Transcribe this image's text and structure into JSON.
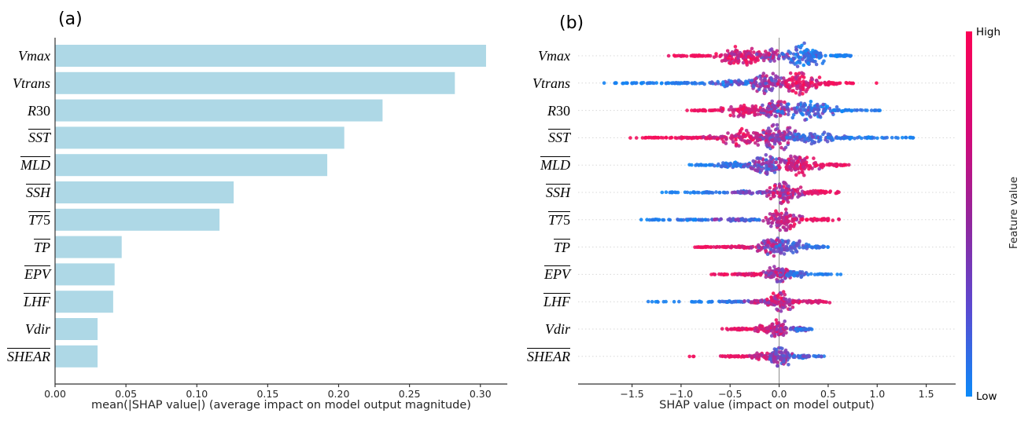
{
  "figure": {
    "background": "#ffffff"
  },
  "chart_data": [
    {
      "type": "bar",
      "orientation": "horizontal",
      "tag": "(a)",
      "title": "",
      "xlabel": "mean(|SHAP value|) (average impact on model output magnitude)",
      "ylabel": "",
      "categories": [
        "Vmax",
        "Vtrans",
        "R30",
        "SST",
        "MLD",
        "SSH",
        "T75",
        "TP",
        "EPV",
        "LHF",
        "Vdir",
        "SHEAR"
      ],
      "overline": [
        false,
        false,
        false,
        true,
        true,
        true,
        true,
        true,
        true,
        true,
        false,
        true
      ],
      "values": [
        0.304,
        0.282,
        0.231,
        0.204,
        0.192,
        0.126,
        0.116,
        0.047,
        0.042,
        0.041,
        0.03,
        0.03
      ],
      "xticks": {
        "values": [
          0,
          0.05,
          0.1,
          0.15,
          0.2,
          0.25,
          0.3
        ],
        "labels": [
          "0.00",
          "0.05",
          "0.10",
          "0.15",
          "0.20",
          "0.25",
          "0.30"
        ]
      },
      "xlim": [
        0,
        0.319
      ],
      "bar_color": "#aed8e6",
      "grid": false
    },
    {
      "type": "scatter",
      "variant": "beeswarm",
      "tag": "(b)",
      "title": "",
      "xlabel": "SHAP value (impact on model output)",
      "xticks": {
        "values": [
          -1.5,
          -1.0,
          -0.5,
          0.0,
          0.5,
          1.0,
          1.5
        ],
        "labels": [
          "−1.5",
          "−1.0",
          "−0.5",
          "0.0",
          "0.5",
          "1.0",
          "1.5"
        ]
      },
      "xlim": [
        -2.05,
        1.8
      ],
      "zero_line": true,
      "grid": "dotted-horizontal",
      "colors": {
        "high": "#fb0d57",
        "mid": "#8a3bb4",
        "low": "#0b8af8"
      },
      "colorbar": {
        "title": "Feature value",
        "high_label": "High",
        "low_label": "Low"
      },
      "rows": [
        {
          "feature": "Vmax",
          "overline": false,
          "shap_range": [
            -1.2,
            0.85
          ],
          "clusters": [
            {
              "x": -0.85,
              "sx": 0.18,
              "sy": 0.05,
              "n": 45,
              "v": 0.95,
              "vj": 0.05
            },
            {
              "x": -0.38,
              "sx": 0.17,
              "sy": 0.75,
              "n": 110,
              "v": 0.82,
              "vj": 0.25
            },
            {
              "x": -0.07,
              "sx": 0.1,
              "sy": 0.5,
              "n": 50,
              "v": 0.55,
              "vj": 0.3
            },
            {
              "x": 0.27,
              "sx": 0.14,
              "sy": 0.95,
              "n": 110,
              "v": 0.18,
              "vj": 0.2
            },
            {
              "x": 0.62,
              "sx": 0.12,
              "sy": 0.07,
              "n": 35,
              "v": 0.08,
              "vj": 0.08
            }
          ]
        },
        {
          "feature": "Vtrans",
          "overline": false,
          "shap_range": [
            -1.8,
            1.0
          ],
          "clusters": [
            {
              "x": -1.45,
              "sx": 0.18,
              "sy": 0.04,
              "n": 30,
              "v": 0.06,
              "vj": 0.06
            },
            {
              "x": -0.95,
              "sx": 0.22,
              "sy": 0.05,
              "n": 45,
              "v": 0.08,
              "vj": 0.08
            },
            {
              "x": -0.45,
              "sx": 0.18,
              "sy": 0.3,
              "n": 60,
              "v": 0.25,
              "vj": 0.25
            },
            {
              "x": -0.12,
              "sx": 0.12,
              "sy": 0.8,
              "n": 90,
              "v": 0.5,
              "vj": 0.3
            },
            {
              "x": 0.22,
              "sx": 0.13,
              "sy": 0.95,
              "n": 100,
              "v": 0.85,
              "vj": 0.2
            },
            {
              "x": 0.5,
              "sx": 0.08,
              "sy": 0.15,
              "n": 30,
              "v": 0.95,
              "vj": 0.05
            },
            {
              "x": 0.72,
              "sx": 0.1,
              "sy": 0.04,
              "n": 8,
              "v": 0.97,
              "vj": 0.03
            },
            {
              "x": 1.0,
              "sx": 0.01,
              "sy": 0.02,
              "n": 1,
              "v": 1.0,
              "vj": 0.0
            }
          ]
        },
        {
          "feature": "R30",
          "overline": false,
          "shap_range": [
            -0.95,
            1.15
          ],
          "clusters": [
            {
              "x": -0.72,
              "sx": 0.13,
              "sy": 0.05,
              "n": 30,
              "v": 0.95,
              "vj": 0.05
            },
            {
              "x": -0.35,
              "sx": 0.16,
              "sy": 0.5,
              "n": 80,
              "v": 0.85,
              "vj": 0.2
            },
            {
              "x": -0.05,
              "sx": 0.12,
              "sy": 0.8,
              "n": 80,
              "v": 0.6,
              "vj": 0.3
            },
            {
              "x": 0.28,
              "sx": 0.18,
              "sy": 0.85,
              "n": 100,
              "v": 0.25,
              "vj": 0.25
            },
            {
              "x": 0.65,
              "sx": 0.15,
              "sy": 0.08,
              "n": 30,
              "v": 0.1,
              "vj": 0.1
            },
            {
              "x": 1.0,
              "sx": 0.08,
              "sy": 0.03,
              "n": 8,
              "v": 0.08,
              "vj": 0.08
            }
          ]
        },
        {
          "feature": "SST",
          "overline": true,
          "shap_range": [
            -1.55,
            1.55
          ],
          "clusters": [
            {
              "x": -1.3,
              "sx": 0.15,
              "sy": 0.04,
              "n": 25,
              "v": 0.97,
              "vj": 0.03
            },
            {
              "x": -0.85,
              "sx": 0.2,
              "sy": 0.08,
              "n": 50,
              "v": 0.93,
              "vj": 0.07
            },
            {
              "x": -0.35,
              "sx": 0.22,
              "sy": 0.7,
              "n": 100,
              "v": 0.85,
              "vj": 0.2
            },
            {
              "x": -0.02,
              "sx": 0.15,
              "sy": 1.0,
              "n": 110,
              "v": 0.55,
              "vj": 0.3
            },
            {
              "x": 0.35,
              "sx": 0.2,
              "sy": 0.45,
              "n": 80,
              "v": 0.25,
              "vj": 0.2
            },
            {
              "x": 0.8,
              "sx": 0.2,
              "sy": 0.06,
              "n": 40,
              "v": 0.1,
              "vj": 0.1
            },
            {
              "x": 1.3,
              "sx": 0.13,
              "sy": 0.03,
              "n": 12,
              "v": 0.06,
              "vj": 0.06
            }
          ]
        },
        {
          "feature": "MLD",
          "overline": true,
          "shap_range": [
            -0.95,
            0.8
          ],
          "clusters": [
            {
              "x": -0.8,
              "sx": 0.12,
              "sy": 0.04,
              "n": 20,
              "v": 0.07,
              "vj": 0.07
            },
            {
              "x": -0.45,
              "sx": 0.15,
              "sy": 0.25,
              "n": 55,
              "v": 0.15,
              "vj": 0.15
            },
            {
              "x": -0.12,
              "sx": 0.13,
              "sy": 0.8,
              "n": 95,
              "v": 0.45,
              "vj": 0.3
            },
            {
              "x": 0.2,
              "sx": 0.13,
              "sy": 0.9,
              "n": 95,
              "v": 0.8,
              "vj": 0.22
            },
            {
              "x": 0.55,
              "sx": 0.12,
              "sy": 0.1,
              "n": 35,
              "v": 0.93,
              "vj": 0.07
            }
          ]
        },
        {
          "feature": "SSH",
          "overline": true,
          "shap_range": [
            -1.25,
            0.75
          ],
          "clusters": [
            {
              "x": -1.05,
              "sx": 0.12,
              "sy": 0.03,
              "n": 12,
              "v": 0.06,
              "vj": 0.06
            },
            {
              "x": -0.7,
              "sx": 0.15,
              "sy": 0.05,
              "n": 30,
              "v": 0.1,
              "vj": 0.1
            },
            {
              "x": -0.3,
              "sx": 0.15,
              "sy": 0.12,
              "n": 45,
              "v": 0.3,
              "vj": 0.25
            },
            {
              "x": 0.05,
              "sx": 0.12,
              "sy": 0.9,
              "n": 110,
              "v": 0.7,
              "vj": 0.3
            },
            {
              "x": 0.4,
              "sx": 0.13,
              "sy": 0.15,
              "n": 40,
              "v": 0.92,
              "vj": 0.08
            }
          ]
        },
        {
          "feature": "T75",
          "overline": true,
          "shap_range": [
            -1.45,
            0.8
          ],
          "clusters": [
            {
              "x": -1.25,
              "sx": 0.12,
              "sy": 0.03,
              "n": 15,
              "v": 0.06,
              "vj": 0.06
            },
            {
              "x": -0.85,
              "sx": 0.18,
              "sy": 0.05,
              "n": 35,
              "v": 0.12,
              "vj": 0.12
            },
            {
              "x": -0.4,
              "sx": 0.18,
              "sy": 0.12,
              "n": 50,
              "v": 0.35,
              "vj": 0.3
            },
            {
              "x": 0.05,
              "sx": 0.13,
              "sy": 0.85,
              "n": 100,
              "v": 0.75,
              "vj": 0.25
            },
            {
              "x": 0.42,
              "sx": 0.14,
              "sy": 0.12,
              "n": 35,
              "v": 0.92,
              "vj": 0.08
            }
          ]
        },
        {
          "feature": "TP",
          "overline": true,
          "shap_range": [
            -0.95,
            0.55
          ],
          "clusters": [
            {
              "x": -0.75,
              "sx": 0.12,
              "sy": 0.04,
              "n": 25,
              "v": 0.95,
              "vj": 0.05
            },
            {
              "x": -0.4,
              "sx": 0.15,
              "sy": 0.08,
              "n": 45,
              "v": 0.9,
              "vj": 0.1
            },
            {
              "x": -0.08,
              "sx": 0.1,
              "sy": 0.75,
              "n": 90,
              "v": 0.55,
              "vj": 0.35
            },
            {
              "x": 0.12,
              "sx": 0.1,
              "sy": 0.6,
              "n": 50,
              "v": 0.25,
              "vj": 0.2
            },
            {
              "x": 0.38,
              "sx": 0.1,
              "sy": 0.1,
              "n": 30,
              "v": 0.12,
              "vj": 0.1
            }
          ]
        },
        {
          "feature": "EPV",
          "overline": true,
          "shap_range": [
            -0.75,
            0.65
          ],
          "clusters": [
            {
              "x": -0.55,
              "sx": 0.1,
              "sy": 0.04,
              "n": 20,
              "v": 0.95,
              "vj": 0.05
            },
            {
              "x": -0.28,
              "sx": 0.12,
              "sy": 0.1,
              "n": 40,
              "v": 0.88,
              "vj": 0.12
            },
            {
              "x": -0.02,
              "sx": 0.09,
              "sy": 0.7,
              "n": 80,
              "v": 0.6,
              "vj": 0.3
            },
            {
              "x": 0.2,
              "sx": 0.1,
              "sy": 0.3,
              "n": 40,
              "v": 0.2,
              "vj": 0.15
            },
            {
              "x": 0.45,
              "sx": 0.1,
              "sy": 0.05,
              "n": 15,
              "v": 0.1,
              "vj": 0.08
            },
            {
              "x": 0.62,
              "sx": 0.01,
              "sy": 0.02,
              "n": 1,
              "v": 0.05,
              "vj": 0.0
            }
          ]
        },
        {
          "feature": "LHF",
          "overline": true,
          "shap_range": [
            -1.45,
            0.68
          ],
          "clusters": [
            {
              "x": -1.15,
              "sx": 0.22,
              "sy": 0.03,
              "n": 10,
              "v": 0.05,
              "vj": 0.05
            },
            {
              "x": -0.7,
              "sx": 0.15,
              "sy": 0.04,
              "n": 14,
              "v": 0.07,
              "vj": 0.05
            },
            {
              "x": -0.5,
              "sx": 0.12,
              "sy": 0.06,
              "n": 25,
              "v": 0.15,
              "vj": 0.15
            },
            {
              "x": -0.2,
              "sx": 0.1,
              "sy": 0.15,
              "n": 40,
              "v": 0.6,
              "vj": 0.3
            },
            {
              "x": 0.02,
              "sx": 0.1,
              "sy": 0.85,
              "n": 95,
              "v": 0.75,
              "vj": 0.3
            },
            {
              "x": 0.35,
              "sx": 0.13,
              "sy": 0.12,
              "n": 40,
              "v": 0.85,
              "vj": 0.15
            }
          ]
        },
        {
          "feature": "Vdir",
          "overline": false,
          "shap_range": [
            -0.55,
            0.38
          ],
          "clusters": [
            {
              "x": -0.4,
              "sx": 0.1,
              "sy": 0.08,
              "n": 40,
              "v": 0.92,
              "vj": 0.08
            },
            {
              "x": -0.15,
              "sx": 0.08,
              "sy": 0.3,
              "n": 40,
              "v": 0.85,
              "vj": 0.15
            },
            {
              "x": 0.0,
              "sx": 0.07,
              "sy": 0.75,
              "n": 70,
              "v": 0.7,
              "vj": 0.3
            },
            {
              "x": 0.18,
              "sx": 0.08,
              "sy": 0.2,
              "n": 35,
              "v": 0.3,
              "vj": 0.25
            },
            {
              "x": 0.3,
              "sx": 0.05,
              "sy": 0.05,
              "n": 10,
              "v": 0.15,
              "vj": 0.1
            }
          ]
        },
        {
          "feature": "SHEAR",
          "overline": true,
          "shap_range": [
            -0.98,
            0.5
          ],
          "clusters": [
            {
              "x": -0.92,
              "sx": 0.06,
              "sy": 0.02,
              "n": 3,
              "v": 0.97,
              "vj": 0.03
            },
            {
              "x": -0.45,
              "sx": 0.12,
              "sy": 0.05,
              "n": 35,
              "v": 0.93,
              "vj": 0.07
            },
            {
              "x": -0.15,
              "sx": 0.1,
              "sy": 0.3,
              "n": 45,
              "v": 0.8,
              "vj": 0.2
            },
            {
              "x": 0.0,
              "sx": 0.08,
              "sy": 0.95,
              "n": 85,
              "v": 0.45,
              "vj": 0.3
            },
            {
              "x": 0.22,
              "sx": 0.1,
              "sy": 0.15,
              "n": 40,
              "v": 0.25,
              "vj": 0.25
            },
            {
              "x": 0.42,
              "sx": 0.05,
              "sy": 0.04,
              "n": 8,
              "v": 0.2,
              "vj": 0.2
            }
          ]
        }
      ]
    }
  ]
}
